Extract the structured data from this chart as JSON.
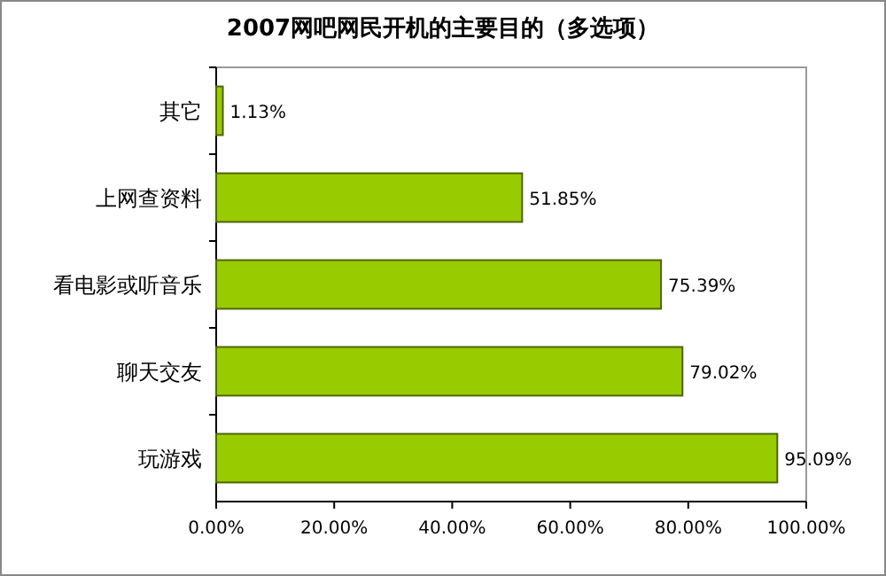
{
  "chart_data": {
    "type": "bar",
    "orientation": "horizontal",
    "title": "2007网吧网民开机的主要目的（多选项）",
    "categories": [
      "其它",
      "上网查资料",
      "看电影或听音乐",
      "聊天交友",
      "玩游戏"
    ],
    "values": [
      1.13,
      51.85,
      75.39,
      79.02,
      95.09
    ],
    "value_labels": [
      "1.13%",
      "51.85%",
      "75.39%",
      "79.02%",
      "95.09%"
    ],
    "color": "#99cc00",
    "xlim": [
      0,
      100
    ],
    "xticks": [
      {
        "value": 0,
        "label": "0.00%"
      },
      {
        "value": 20,
        "label": "20.00%"
      },
      {
        "value": 40,
        "label": "40.00%"
      },
      {
        "value": 60,
        "label": "60.00%"
      },
      {
        "value": 80,
        "label": "80.00%"
      },
      {
        "value": 100,
        "label": "100.00%"
      }
    ],
    "grid": false
  }
}
